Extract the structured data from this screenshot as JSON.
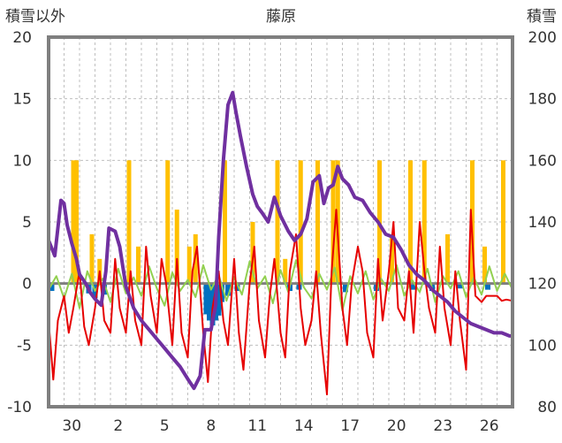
{
  "chart_data": {
    "type": "line",
    "title": "藤原",
    "left_axis_label": "積雪以外",
    "right_axis_label": "積雪",
    "left_ylim": [
      -10,
      20
    ],
    "right_ylim": [
      80,
      200
    ],
    "left_ticks": [
      "20",
      "15",
      "10",
      "5",
      "0",
      "-5",
      "-10"
    ],
    "right_ticks": [
      "200",
      "180",
      "160",
      "140",
      "120",
      "100",
      "80"
    ],
    "x_tick_labels": [
      "30",
      "2",
      "5",
      "8",
      "11",
      "14",
      "17",
      "20",
      "23",
      "26"
    ],
    "x_tick_days": [
      1.5,
      4.5,
      7.5,
      10.5,
      13.5,
      16.5,
      19.5,
      22.5,
      25.5,
      28.5
    ],
    "xlim": [
      0,
      30
    ],
    "grid": true,
    "colors": {
      "temperature": "#e60000",
      "wind": "#92d050",
      "precip_negative": "#0070c0",
      "sunshine": "#ffc000",
      "snow_depth": "#7030a0",
      "frame": "#7f7f7f",
      "grid": "#bfbfbf",
      "zero_line": "#7f7f7f"
    },
    "snow_depth": {
      "axis": "right",
      "x": [
        0,
        0.4,
        0.8,
        1.0,
        1.2,
        1.5,
        1.8,
        2.0,
        2.4,
        2.7,
        3.0,
        3.4,
        3.7,
        3.9,
        4.3,
        4.6,
        5.0,
        5.5,
        6.0,
        6.5,
        7.0,
        7.5,
        8.0,
        8.5,
        9.0,
        9.4,
        9.8,
        10.1,
        10.5,
        10.8,
        11.0,
        11.3,
        11.6,
        11.9,
        12.1,
        12.4,
        12.8,
        13.2,
        13.5,
        13.8,
        14.2,
        14.6,
        15.0,
        15.5,
        15.9,
        16.3,
        16.7,
        17.1,
        17.5,
        17.8,
        18.1,
        18.4,
        18.7,
        19.0,
        19.4,
        19.8,
        20.3,
        20.8,
        21.3,
        21.8,
        22.3,
        22.8,
        23.3,
        23.8,
        24.3,
        24.8,
        25.3,
        25.8,
        26.3,
        26.8,
        27.3,
        27.8,
        28.3,
        28.8,
        29.3,
        29.8,
        30.0
      ],
      "y": [
        134,
        129,
        147,
        146,
        139,
        133,
        128,
        123,
        120,
        117,
        115,
        113,
        124,
        138,
        137,
        132,
        119,
        112,
        108,
        105,
        102,
        99,
        96,
        93,
        89,
        86,
        90,
        105,
        105,
        113,
        135,
        160,
        178,
        182,
        176,
        168,
        158,
        149,
        145,
        143,
        140,
        148,
        142,
        137,
        134,
        136,
        141,
        153,
        155,
        146,
        151,
        152,
        158,
        154,
        152,
        148,
        147,
        143,
        140,
        136,
        135,
        131,
        126,
        123,
        121,
        118,
        116,
        114,
        111,
        109,
        107,
        106,
        105,
        104,
        104,
        103,
        103
      ]
    },
    "temperature": {
      "axis": "left",
      "x": [
        0,
        0.3,
        0.6,
        1.0,
        1.3,
        1.6,
        2.0,
        2.3,
        2.6,
        3.0,
        3.3,
        3.6,
        4.0,
        4.3,
        4.6,
        5.0,
        5.3,
        5.6,
        6.0,
        6.3,
        6.6,
        7.0,
        7.3,
        7.6,
        8.0,
        8.3,
        8.6,
        9.0,
        9.3,
        9.6,
        10.0,
        10.3,
        10.6,
        11.0,
        11.3,
        11.6,
        12.0,
        12.3,
        12.6,
        13.0,
        13.3,
        13.6,
        14.0,
        14.3,
        14.6,
        15.0,
        15.3,
        15.6,
        16.0,
        16.3,
        16.6,
        17.0,
        17.3,
        17.6,
        18.0,
        18.3,
        18.6,
        19.0,
        19.3,
        19.6,
        20.0,
        20.3,
        20.6,
        21.0,
        21.3,
        21.6,
        22.0,
        22.3,
        22.6,
        23.0,
        23.3,
        23.6,
        24.0,
        24.3,
        24.6,
        25.0,
        25.3,
        25.6,
        26.0,
        26.3,
        26.6,
        27.0,
        27.3,
        27.6,
        28.0,
        28.3,
        28.6,
        29.0,
        29.3,
        29.6,
        30.0
      ],
      "y": [
        -3,
        -7.8,
        -3,
        -1,
        -4,
        -2,
        1,
        -3.5,
        -5,
        -2,
        1,
        -3,
        -4,
        2,
        -2,
        -4,
        1,
        -3,
        -5,
        3,
        -1,
        -4,
        2,
        0,
        -5,
        2,
        -4,
        -6,
        1,
        3,
        -4,
        -8,
        -2,
        1,
        -3,
        -5,
        2,
        -4,
        -7,
        0,
        3,
        -3,
        -6,
        -1,
        2,
        -4,
        -6,
        1,
        4,
        -2,
        -5,
        -3,
        1,
        -4,
        -9,
        1,
        6,
        -2,
        -5,
        0,
        3,
        1,
        -4,
        -6,
        2,
        -3,
        1,
        5,
        -2,
        -3,
        1,
        -4,
        5,
        1,
        -2,
        -4,
        3,
        -2,
        -5,
        1,
        -3,
        -7,
        6,
        -1,
        -1.5,
        -1,
        -1,
        -1,
        -1.4,
        -1.3,
        -1.4
      ]
    },
    "wind": {
      "axis": "left",
      "x": [
        0,
        0.5,
        1.0,
        1.5,
        2.0,
        2.5,
        3.0,
        3.5,
        4.0,
        4.5,
        5.0,
        5.5,
        6.0,
        6.5,
        7.0,
        7.5,
        8.0,
        8.5,
        9.0,
        9.5,
        10.0,
        10.5,
        11.0,
        11.5,
        12.0,
        12.5,
        13.0,
        13.5,
        14.0,
        14.5,
        15.0,
        15.5,
        16.0,
        16.5,
        17.0,
        17.5,
        18.0,
        18.5,
        19.0,
        19.5,
        20.0,
        20.5,
        21.0,
        21.5,
        22.0,
        22.5,
        23.0,
        23.5,
        24.0,
        24.5,
        25.0,
        25.5,
        26.0,
        26.5,
        27.0,
        27.5,
        28.0,
        28.5,
        29.0,
        29.5,
        30.0
      ],
      "y": [
        -0.5,
        0.6,
        -1.2,
        0.8,
        -2,
        1,
        -0.6,
        0.4,
        -1.5,
        1.2,
        -0.8,
        0.5,
        -1,
        1.4,
        -0.4,
        -1.8,
        0.9,
        -0.6,
        0.3,
        -1.1,
        1.5,
        -0.5,
        0.7,
        -1.4,
        0.5,
        -0.9,
        1.8,
        -0.4,
        0.6,
        -1.6,
        1.1,
        -0.7,
        1.9,
        -0.3,
        -1.2,
        0.8,
        -0.5,
        1.3,
        -2.2,
        0.6,
        -0.8,
        1.0,
        -1.3,
        0.4,
        -0.6,
        1.5,
        -1.0,
        0.3,
        -0.7,
        1.2,
        -1.5,
        0.6,
        -0.4,
        1.0,
        -1.1,
        0.5,
        -0.9,
        1.4,
        -0.6,
        0.8,
        -0.5
      ]
    },
    "sunshine_bars": {
      "axis": "left",
      "x": [
        1.6,
        1.8,
        2.8,
        3.3,
        5.2,
        5.8,
        7.7,
        8.3,
        9.1,
        9.5,
        11.4,
        13.2,
        14.8,
        15.3,
        16.3,
        17.4,
        18.4,
        18.7,
        21.4,
        22.2,
        23.4,
        24.3,
        25.8,
        27.4,
        28.2,
        29.4
      ],
      "y": [
        10,
        10,
        4,
        2,
        10,
        3,
        10,
        6,
        3,
        4,
        10,
        5,
        10,
        2,
        10,
        10,
        10,
        10,
        10,
        4,
        10,
        10,
        4,
        10,
        3,
        10
      ]
    },
    "negative_bars": {
      "axis": "left",
      "x": [
        0.2,
        2.6,
        3.0,
        3.6,
        10.2,
        10.4,
        10.6,
        10.8,
        11.0,
        11.2,
        11.6,
        12.2,
        15.6,
        16.2,
        19.2,
        21.2,
        23.6,
        24.8,
        26.6,
        28.4
      ],
      "y": [
        -0.6,
        -0.8,
        -1.2,
        -0.9,
        -2.5,
        -3.0,
        -3.4,
        -3.0,
        -2.6,
        -1.5,
        -1.0,
        -0.6,
        -0.6,
        -0.5,
        -0.7,
        -0.6,
        -0.5,
        -0.6,
        -0.4,
        -0.5
      ]
    }
  }
}
